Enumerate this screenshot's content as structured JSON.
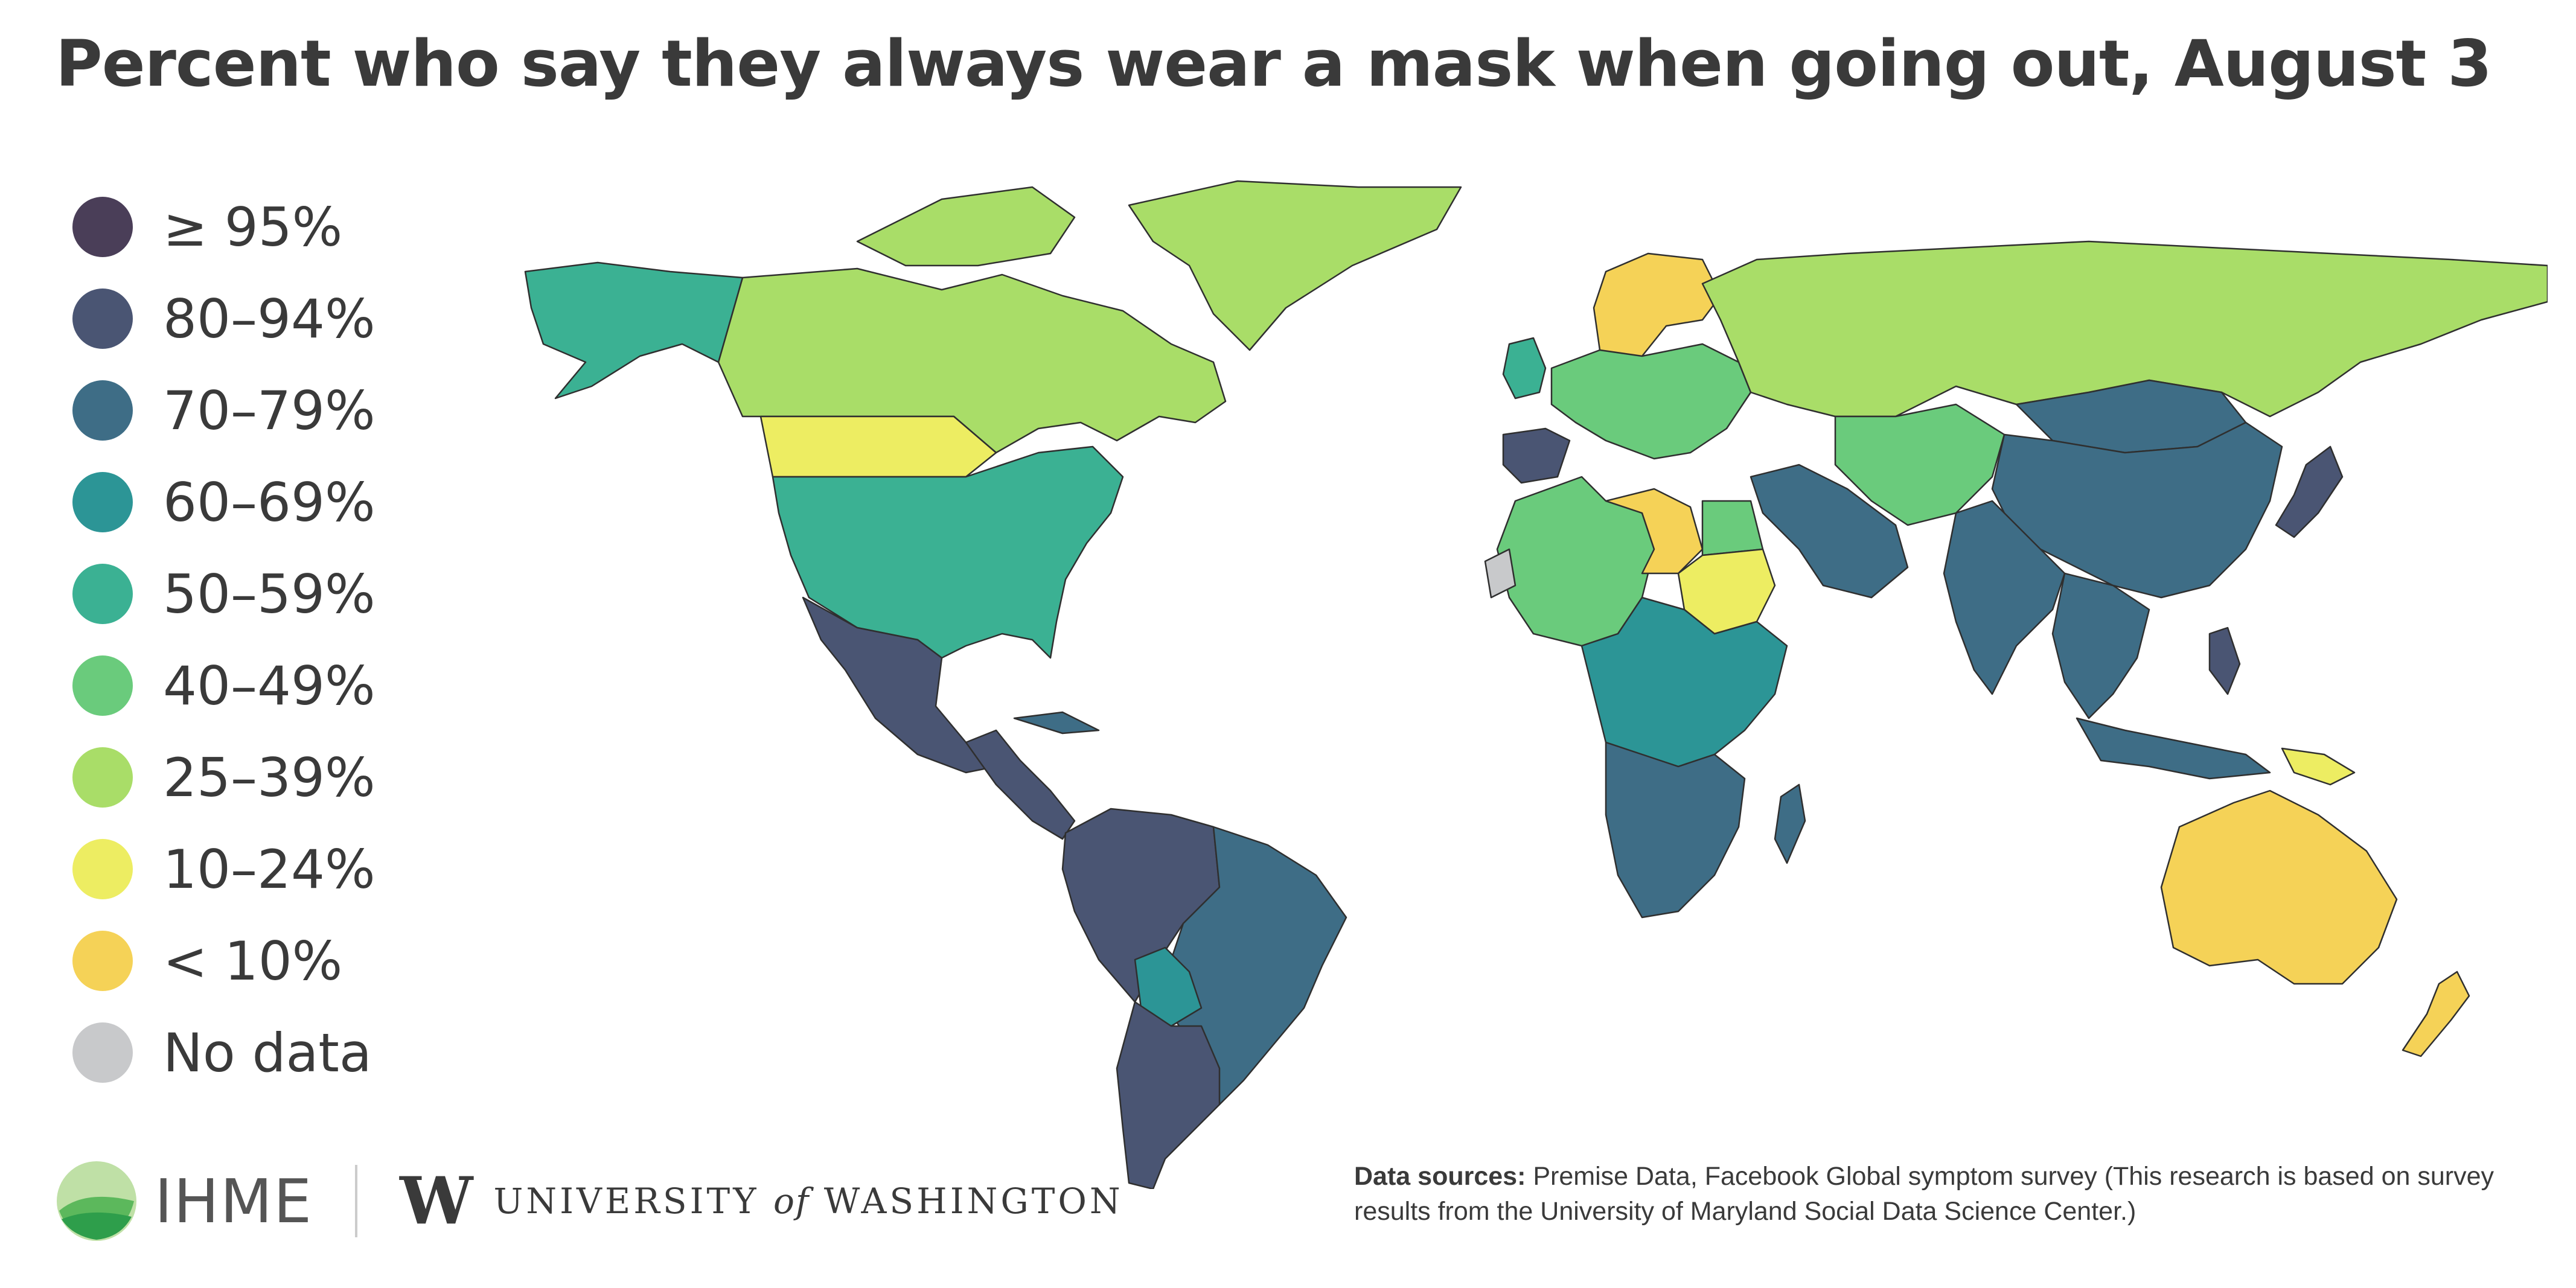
{
  "title": "Percent who say they always wear a mask when going out, August 3",
  "legend": {
    "items": [
      {
        "label": "≥ 95%",
        "color": "#4a3e58"
      },
      {
        "label": "80–94%",
        "color": "#4a5573"
      },
      {
        "label": "70–79%",
        "color": "#3e6d86"
      },
      {
        "label": "60–69%",
        "color": "#2c9596"
      },
      {
        "label": "50–59%",
        "color": "#3bb193"
      },
      {
        "label": "40–49%",
        "color": "#6acb7c"
      },
      {
        "label": "25–39%",
        "color": "#a9dd68"
      },
      {
        "label": "10–24%",
        "color": "#eded62"
      },
      {
        "label": "< 10%",
        "color": "#f5d257"
      },
      {
        "label": "No data",
        "color": "#c8c9cb"
      }
    ]
  },
  "regions": [
    {
      "name": "Canada",
      "category": "25–39%"
    },
    {
      "name": "Alaska",
      "category": "50–59%"
    },
    {
      "name": "Greenland",
      "category": "25–39%"
    },
    {
      "name": "United States",
      "category": "50–59%"
    },
    {
      "name": "Mexico",
      "category": "80–94%"
    },
    {
      "name": "Central America",
      "category": "80–94%"
    },
    {
      "name": "Colombia / Venezuela / Peru",
      "category": "80–94%"
    },
    {
      "name": "Brazil",
      "category": "70–79%"
    },
    {
      "name": "Argentina / Chile",
      "category": "80–94%"
    },
    {
      "name": "Bolivia",
      "category": "60–69%"
    },
    {
      "name": "Scandinavia",
      "category": "< 10%"
    },
    {
      "name": "Russia",
      "category": "25–39%"
    },
    {
      "name": "Iberia",
      "category": "80–94%"
    },
    {
      "name": "North Africa",
      "category": "40–49%"
    },
    {
      "name": "Libya",
      "category": "< 10%"
    },
    {
      "name": "Sudan",
      "category": "10–24%"
    },
    {
      "name": "Central Africa",
      "category": "60–69%"
    },
    {
      "name": "Southern Africa",
      "category": "70–79%"
    },
    {
      "name": "Madagascar",
      "category": "70–79%"
    },
    {
      "name": "Western Sahara",
      "category": "No data"
    },
    {
      "name": "Middle East",
      "category": "70–79%"
    },
    {
      "name": "Central Asia",
      "category": "40–49%"
    },
    {
      "name": "Mongolia",
      "category": "70–79%"
    },
    {
      "name": "China",
      "category": "70–79%"
    },
    {
      "name": "India",
      "category": "70–79%"
    },
    {
      "name": "Japan",
      "category": "80–94%"
    },
    {
      "name": "Southeast Asia",
      "category": "70–79%"
    },
    {
      "name": "Indonesia",
      "category": "70–79%"
    },
    {
      "name": "Philippines",
      "category": "80–94%"
    },
    {
      "name": "Papua New Guinea",
      "category": "10–24%"
    },
    {
      "name": "Australia",
      "category": "< 10%"
    },
    {
      "name": "New Zealand",
      "category": "< 10%"
    }
  ],
  "logos": {
    "ihme_text": "IHME",
    "uw_mark": "W",
    "uw_text_pre": "UNIVERSITY",
    "uw_text_of": "of",
    "uw_text_post": "WASHINGTON"
  },
  "sources": {
    "label": "Data sources:",
    "text": "Premise Data, Facebook Global symptom survey (This research is based on survey results from the University of Maryland Social Data Science Center.)"
  }
}
